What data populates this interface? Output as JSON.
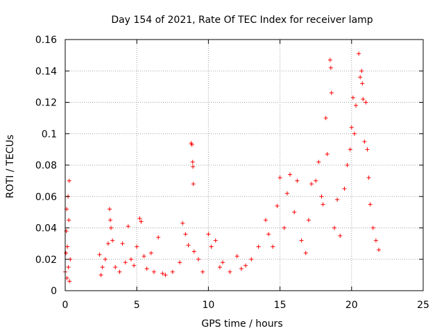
{
  "chart_data": {
    "type": "scatter",
    "title": "Day 154 of 2021, Rate Of TEC Index for receiver lamp",
    "xlabel": "GPS time / hours",
    "ylabel": "ROTI / TECUs",
    "xlim": [
      0,
      25
    ],
    "ylim": [
      0,
      0.16
    ],
    "x_ticks": [
      "0",
      "5",
      "10",
      "15",
      "20",
      "25"
    ],
    "y_ticks": [
      "0",
      "0.02",
      "0.04",
      "0.06",
      "0.08",
      "0.1",
      "0.12",
      "0.14",
      "0.16"
    ],
    "grid": true,
    "marker": "+",
    "color": "#ff0000",
    "series": [
      {
        "points": [
          [
            0.0,
            0.012
          ],
          [
            0.05,
            0.024
          ],
          [
            0.08,
            0.038
          ],
          [
            0.1,
            0.052
          ],
          [
            0.12,
            0.008
          ],
          [
            0.15,
            0.028
          ],
          [
            0.2,
            0.06
          ],
          [
            0.22,
            0.015
          ],
          [
            0.25,
            0.045
          ],
          [
            0.28,
            0.07
          ],
          [
            0.3,
            0.006
          ],
          [
            0.35,
            0.02
          ],
          [
            2.4,
            0.023
          ],
          [
            2.5,
            0.01
          ],
          [
            2.6,
            0.015
          ],
          [
            2.8,
            0.02
          ],
          [
            3.0,
            0.03
          ],
          [
            3.1,
            0.052
          ],
          [
            3.15,
            0.045
          ],
          [
            3.2,
            0.04
          ],
          [
            3.3,
            0.032
          ],
          [
            3.5,
            0.015
          ],
          [
            3.8,
            0.012
          ],
          [
            4.0,
            0.03
          ],
          [
            4.2,
            0.018
          ],
          [
            4.4,
            0.041
          ],
          [
            4.6,
            0.02
          ],
          [
            4.8,
            0.016
          ],
          [
            5.0,
            0.028
          ],
          [
            5.2,
            0.046
          ],
          [
            5.3,
            0.044
          ],
          [
            5.5,
            0.022
          ],
          [
            5.7,
            0.014
          ],
          [
            6.0,
            0.024
          ],
          [
            6.2,
            0.012
          ],
          [
            6.5,
            0.034
          ],
          [
            6.8,
            0.011
          ],
          [
            7.0,
            0.01
          ],
          [
            7.5,
            0.012
          ],
          [
            8.0,
            0.018
          ],
          [
            8.2,
            0.043
          ],
          [
            8.4,
            0.036
          ],
          [
            8.6,
            0.029
          ],
          [
            8.8,
            0.094
          ],
          [
            8.85,
            0.093
          ],
          [
            8.9,
            0.082
          ],
          [
            8.92,
            0.079
          ],
          [
            8.95,
            0.068
          ],
          [
            9.0,
            0.025
          ],
          [
            9.3,
            0.02
          ],
          [
            9.6,
            0.012
          ],
          [
            10.0,
            0.036
          ],
          [
            10.2,
            0.028
          ],
          [
            10.5,
            0.032
          ],
          [
            10.8,
            0.015
          ],
          [
            11.0,
            0.018
          ],
          [
            11.5,
            0.012
          ],
          [
            12.0,
            0.022
          ],
          [
            12.3,
            0.014
          ],
          [
            12.6,
            0.016
          ],
          [
            13.0,
            0.02
          ],
          [
            13.5,
            0.028
          ],
          [
            14.0,
            0.045
          ],
          [
            14.2,
            0.036
          ],
          [
            14.5,
            0.028
          ],
          [
            14.8,
            0.054
          ],
          [
            15.0,
            0.072
          ],
          [
            15.3,
            0.04
          ],
          [
            15.5,
            0.062
          ],
          [
            15.7,
            0.074
          ],
          [
            16.0,
            0.05
          ],
          [
            16.2,
            0.07
          ],
          [
            16.5,
            0.032
          ],
          [
            16.8,
            0.024
          ],
          [
            17.0,
            0.045
          ],
          [
            17.2,
            0.068
          ],
          [
            17.5,
            0.07
          ],
          [
            17.7,
            0.082
          ],
          [
            17.9,
            0.06
          ],
          [
            18.0,
            0.055
          ],
          [
            18.2,
            0.11
          ],
          [
            18.3,
            0.087
          ],
          [
            18.5,
            0.147
          ],
          [
            18.55,
            0.142
          ],
          [
            18.6,
            0.126
          ],
          [
            18.8,
            0.04
          ],
          [
            19.0,
            0.058
          ],
          [
            19.2,
            0.035
          ],
          [
            19.5,
            0.065
          ],
          [
            19.7,
            0.08
          ],
          [
            19.9,
            0.09
          ],
          [
            20.0,
            0.104
          ],
          [
            20.1,
            0.123
          ],
          [
            20.2,
            0.1
          ],
          [
            20.3,
            0.118
          ],
          [
            20.5,
            0.151
          ],
          [
            20.6,
            0.136
          ],
          [
            20.7,
            0.14
          ],
          [
            20.75,
            0.132
          ],
          [
            20.8,
            0.122
          ],
          [
            20.9,
            0.095
          ],
          [
            21.0,
            0.12
          ],
          [
            21.1,
            0.09
          ],
          [
            21.2,
            0.072
          ],
          [
            21.3,
            0.055
          ],
          [
            21.5,
            0.04
          ],
          [
            21.7,
            0.032
          ],
          [
            21.9,
            0.026
          ]
        ]
      }
    ]
  }
}
